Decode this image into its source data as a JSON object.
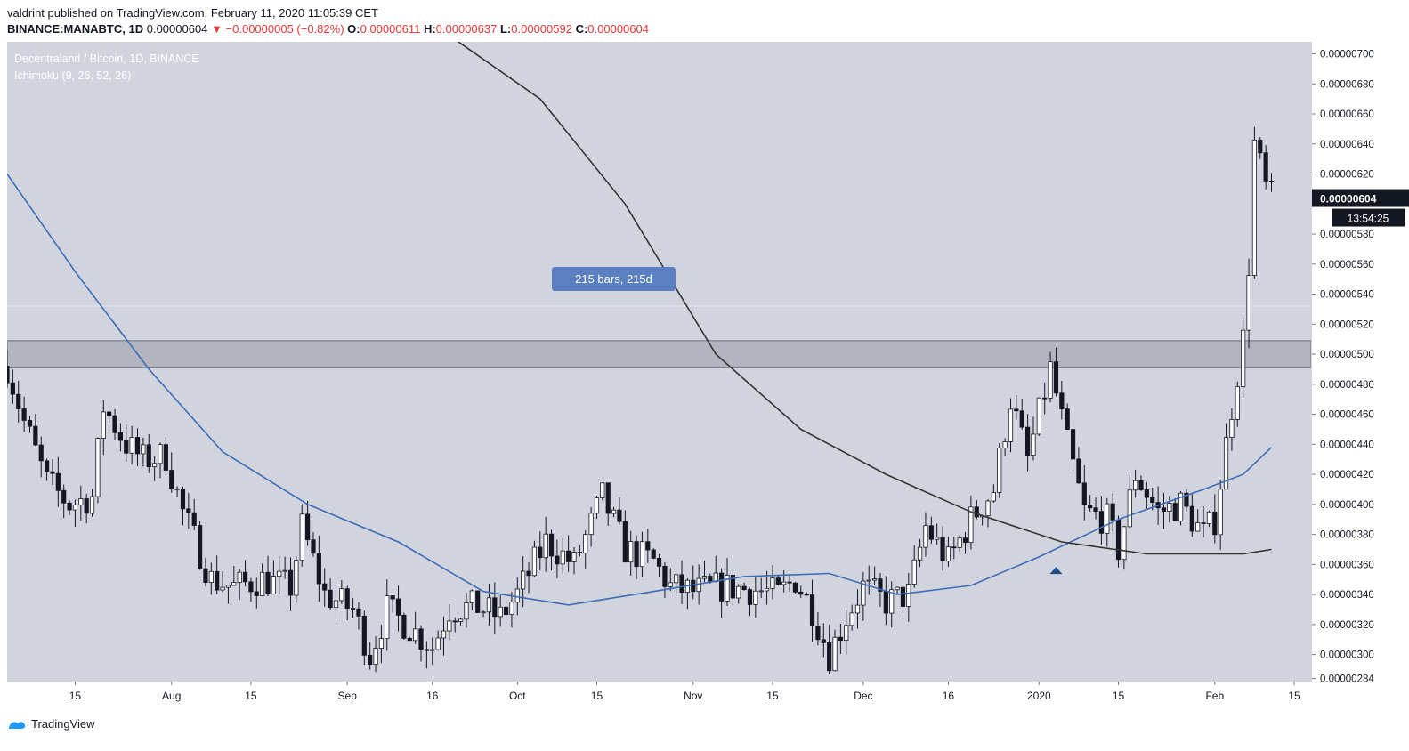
{
  "header": {
    "line1": "valdrint published on TradingView.com, February 11, 2020 11:05:39 CET",
    "symbol": "BINANCE:MANABTC, 1D",
    "last": "0.00000604",
    "change": "▼ −0.00000005 (−0.82%)",
    "o_label": "O:",
    "o_value": "0.00000611",
    "h_label": "H:",
    "h_value": "0.00000637",
    "l_label": "L:",
    "l_value": "0.00000592",
    "c_label": "C:",
    "c_value": "0.00000604"
  },
  "legend": {
    "symbol": "Decentraland / Bitcoin, 1D, BINANCE",
    "indicator": "Ichimoku (9, 26, 52, 26)"
  },
  "measure_label": "215 bars, 215d",
  "price_label": "0.00000604",
  "countdown_label": "13:54:25",
  "footer": {
    "brand": "TradingView"
  },
  "colors": {
    "bg": "#d1d4dc",
    "up_body": "#ffffff",
    "down_body": "#131722",
    "wick": "#131722",
    "ma_blue": "#3d6cb9",
    "ma_dark": "#333333",
    "zone": "#b2b5be",
    "badge": "#5b80c2"
  },
  "chart_data": {
    "type": "candlestick",
    "y_ticks": [
      "0.00000700",
      "0.00000680",
      "0.00000660",
      "0.00000640",
      "0.00000620",
      "0.00000580",
      "0.00000560",
      "0.00000540",
      "0.00000520",
      "0.00000500",
      "0.00000480",
      "0.00000460",
      "0.00000440",
      "0.00000420",
      "0.00000400",
      "0.00000380",
      "0.00000360",
      "0.00000340",
      "0.00000320",
      "0.00000300",
      "0.00000284"
    ],
    "x_ticks": [
      "15",
      "Aug",
      "15",
      "Sep",
      "16",
      "Oct",
      "15",
      "Nov",
      "15",
      "Dec",
      "16",
      "2020",
      "15",
      "Feb",
      "15"
    ],
    "ylim": [
      2.82e-06,
      7.08e-06
    ],
    "resistance_zone": [
      4.91e-06,
      5.09e-06
    ],
    "current_price": 6.04e-06,
    "anchors": [
      [
        "2019-07-03",
        4.92e-06
      ],
      [
        "2019-07-06",
        4.55e-06
      ],
      [
        "2019-07-10",
        4.15e-06
      ],
      [
        "2019-07-14",
        4e-06
      ],
      [
        "2019-07-18",
        4.05e-06
      ],
      [
        "2019-07-20",
        4.65e-06
      ],
      [
        "2019-07-24",
        4.4e-06
      ],
      [
        "2019-07-27",
        4.3e-06
      ],
      [
        "2019-07-31",
        4.32e-06
      ],
      [
        "2019-08-03",
        3.95e-06
      ],
      [
        "2019-08-08",
        3.5e-06
      ],
      [
        "2019-08-12",
        3.45e-06
      ],
      [
        "2019-08-17",
        3.5e-06
      ],
      [
        "2019-08-22",
        3.45e-06
      ],
      [
        "2019-08-24",
        3.85e-06
      ],
      [
        "2019-08-28",
        3.4e-06
      ],
      [
        "2019-09-02",
        3.3e-06
      ],
      [
        "2019-09-05",
        3e-06
      ],
      [
        "2019-09-08",
        3.3e-06
      ],
      [
        "2019-09-12",
        3.18e-06
      ],
      [
        "2019-09-16",
        3.05e-06
      ],
      [
        "2019-09-19",
        3.3e-06
      ],
      [
        "2019-09-24",
        3.32e-06
      ],
      [
        "2019-09-28",
        3.25e-06
      ],
      [
        "2019-10-01",
        3.4e-06
      ],
      [
        "2019-10-06",
        3.75e-06
      ],
      [
        "2019-10-11",
        3.6e-06
      ],
      [
        "2019-10-16",
        4.05e-06
      ],
      [
        "2019-10-20",
        3.7e-06
      ],
      [
        "2019-10-25",
        3.62e-06
      ],
      [
        "2019-10-28",
        3.45e-06
      ],
      [
        "2019-11-01",
        3.42e-06
      ],
      [
        "2019-11-06",
        3.45e-06
      ],
      [
        "2019-11-12",
        3.43e-06
      ],
      [
        "2019-11-16",
        3.4e-06
      ],
      [
        "2019-11-19",
        3.5e-06
      ],
      [
        "2019-11-22",
        3.3e-06
      ],
      [
        "2019-11-25",
        3e-06
      ],
      [
        "2019-11-28",
        3.25e-06
      ],
      [
        "2019-12-01",
        3.45e-06
      ],
      [
        "2019-12-05",
        3.35e-06
      ],
      [
        "2019-12-09",
        3.4e-06
      ],
      [
        "2019-12-12",
        3.85e-06
      ],
      [
        "2019-12-16",
        3.62e-06
      ],
      [
        "2019-12-20",
        3.9e-06
      ],
      [
        "2019-12-24",
        4.1e-06
      ],
      [
        "2019-12-27",
        4.7e-06
      ],
      [
        "2019-12-30",
        4.3e-06
      ],
      [
        "2020-01-03",
        4.9e-06
      ],
      [
        "2020-01-06",
        4.4e-06
      ],
      [
        "2020-01-09",
        3.95e-06
      ],
      [
        "2020-01-13",
        3.9e-06
      ],
      [
        "2020-01-15",
        3.7e-06
      ],
      [
        "2020-01-18",
        4.2e-06
      ],
      [
        "2020-01-22",
        3.95e-06
      ],
      [
        "2020-01-26",
        4e-06
      ],
      [
        "2020-01-30",
        3.8e-06
      ],
      [
        "2020-02-01",
        3.9e-06
      ],
      [
        "2020-02-04",
        4.65e-06
      ],
      [
        "2020-02-06",
        5.1e-06
      ],
      [
        "2020-02-07",
        5.6e-06
      ],
      [
        "2020-02-08",
        6.4e-06
      ],
      [
        "2020-02-10",
        6.11e-06
      ],
      [
        "2020-02-11",
        6.04e-06
      ]
    ],
    "ma50": [
      [
        "2019-07-03",
        6.2e-06
      ],
      [
        "2019-07-15",
        5.55e-06
      ],
      [
        "2019-07-28",
        4.9e-06
      ],
      [
        "2019-08-10",
        4.35e-06
      ],
      [
        "2019-08-25",
        4e-06
      ],
      [
        "2019-09-10",
        3.75e-06
      ],
      [
        "2019-09-25",
        3.42e-06
      ],
      [
        "2019-10-10",
        3.33e-06
      ],
      [
        "2019-10-25",
        3.42e-06
      ],
      [
        "2019-11-10",
        3.52e-06
      ],
      [
        "2019-11-25",
        3.54e-06
      ],
      [
        "2019-12-07",
        3.4e-06
      ],
      [
        "2019-12-20",
        3.46e-06
      ],
      [
        "2020-01-01",
        3.65e-06
      ],
      [
        "2020-01-15",
        3.9e-06
      ],
      [
        "2020-01-30",
        4.1e-06
      ],
      [
        "2020-02-06",
        4.2e-06
      ],
      [
        "2020-02-11",
        4.38e-06
      ]
    ],
    "ma200": [
      [
        "2019-09-16",
        7.2e-06
      ],
      [
        "2019-10-05",
        6.7e-06
      ],
      [
        "2019-10-20",
        6e-06
      ],
      [
        "2019-11-05",
        5e-06
      ],
      [
        "2019-11-20",
        4.5e-06
      ],
      [
        "2019-12-05",
        4.2e-06
      ],
      [
        "2019-12-20",
        3.95e-06
      ],
      [
        "2020-01-05",
        3.75e-06
      ],
      [
        "2020-01-20",
        3.67e-06
      ],
      [
        "2020-02-06",
        3.67e-06
      ],
      [
        "2020-02-11",
        3.7e-06
      ]
    ],
    "marker_date": "2020-01-04"
  }
}
